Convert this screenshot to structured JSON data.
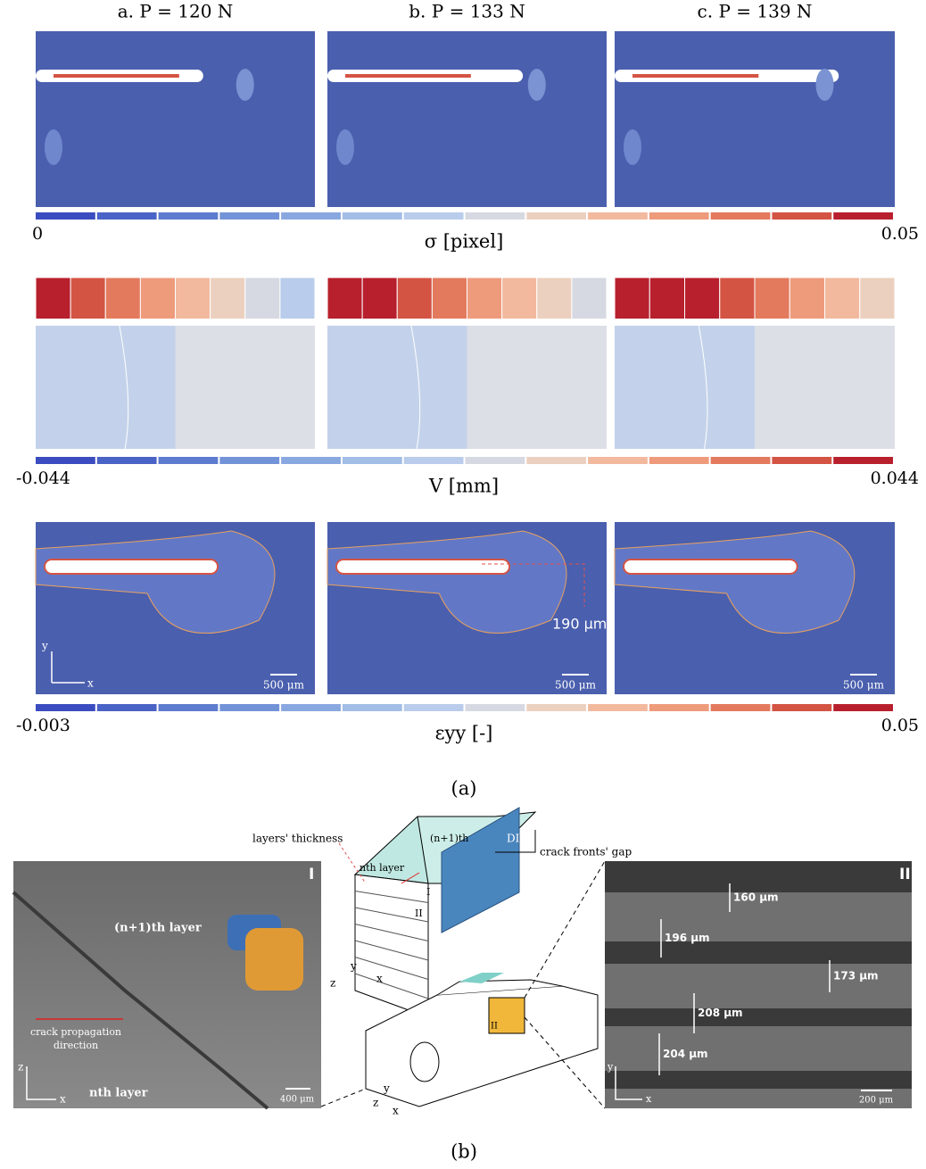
{
  "panel_a": {
    "column_titles": [
      "a. P = 120 N",
      "b. P = 133 N",
      "c. P = 139 N"
    ],
    "rows": [
      {
        "colorbar_min": "0",
        "colorbar_max": "0.05",
        "label": "σ [pixel]"
      },
      {
        "colorbar_min": "-0.044",
        "colorbar_max": "0.044",
        "label": "V [mm]"
      },
      {
        "colorbar_min": "-0.003",
        "colorbar_max": "0.05",
        "label": "εyy [-]"
      }
    ],
    "axis_y": "y",
    "axis_x": "x",
    "crack_gap": "190 μm",
    "scale_bars": [
      "500 μm",
      "500 μm",
      "500 μm"
    ],
    "caption": "(a)"
  },
  "panel_b": {
    "left": {
      "label": "I",
      "top_layer": "(n+1)th layer",
      "direction": [
        "crack propagation",
        "direction"
      ],
      "bottom_layer": "nth layer",
      "axis_z": "z",
      "axis_x": "x",
      "scale_bar": "400 μm"
    },
    "diagram": {
      "layers_thickness": "layers' thickness",
      "upper_layer": "(n+1)th",
      "dic": "DIC",
      "crack_fronts_gap": "crack fronts' gap",
      "lower_layer": "nth layer",
      "face_I": "I",
      "face_II": "II",
      "axes": [
        "z",
        "y",
        "x"
      ],
      "inset": "II",
      "axes_lower": [
        "y",
        "z",
        "x"
      ]
    },
    "right": {
      "label": "II",
      "thicknesses": [
        "160 μm",
        "196 μm",
        "173 μm",
        "208 μm",
        "204 μm"
      ],
      "axis_y": "y",
      "axis_x": "x",
      "scale_bar": "200 μm"
    },
    "caption": "(b)"
  }
}
